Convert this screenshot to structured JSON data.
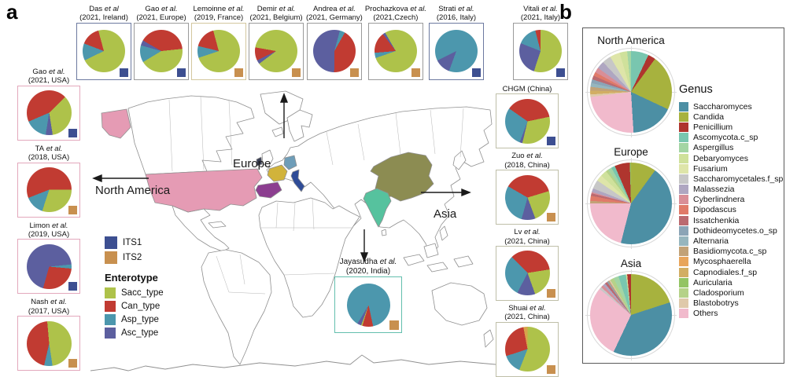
{
  "colors": {
    "enterotype": {
      "Sacc": "#AEC24A",
      "Can": "#C13B32",
      "Asp": "#4C97AD",
      "Asc": "#5C5F9F",
      "Oth": "#D9A24B"
    },
    "markers": {
      "ITS1": "#3D4F91",
      "ITS2": "#C8904F"
    },
    "map": {
      "usa": "#E59BB4",
      "france": "#D1B33B",
      "germany": "#6E9DB8",
      "spain": "#8C3E90",
      "italy": "#2F4C97",
      "ireland": "#3A3F55",
      "india": "#56C29E",
      "china": "#8C8C52"
    },
    "genus": {
      "Saccharomyces": "#4C8FA4",
      "Candida": "#A7B23E",
      "Penicillium": "#AF352E",
      "Ascomycota.c_sp": "#79C6AF",
      "Aspergillus": "#A3D5A4",
      "Debaryomyces": "#CFE19B",
      "Fusarium": "#DEE5A9",
      "Saccharomycetales.f_sp": "#C7C7C7",
      "Malassezia": "#AFA6C1",
      "Cyberlindnera": "#D98E97",
      "Dipodascus": "#E07A69",
      "Issatchenkia": "#BB6A70",
      "Dothideomycetes.o_sp": "#8BA4B6",
      "Alternaria": "#96B6BE",
      "Basidiomycota.c_sp": "#C2A277",
      "Mycosphaerella": "#E8A55B",
      "Capnodiales.f_sp": "#D2AE63",
      "Auricularia": "#93C463",
      "Cladosporium": "#B5D288",
      "Blastobotrys": "#DFC9AA",
      "Others": "#F1BACC"
    }
  },
  "panel_a": {
    "label": "a",
    "map_labels": {
      "europe": "Europe",
      "north_america": "North America",
      "asia": "Asia"
    },
    "its_legend": [
      {
        "label": "ITS1",
        "key": "ITS1"
      },
      {
        "label": "ITS2",
        "key": "ITS2"
      }
    ],
    "enterotype_legend": {
      "title": "Enterotype",
      "items": [
        {
          "label": "Sacc_type",
          "key": "Sacc"
        },
        {
          "label": "Can_type",
          "key": "Can"
        },
        {
          "label": "Asp_type",
          "key": "Asp"
        },
        {
          "label": "Asc_type",
          "key": "Asc"
        }
      ]
    }
  },
  "panel_b": {
    "label": "b",
    "genus_legend_title": "Genus"
  },
  "chart_data": {
    "type": "pie",
    "enterotype_pies": [
      {
        "col": "top",
        "study": "Das",
        "etal": "et al",
        "line2": "(2021, Ireland)",
        "marker": "ITS1",
        "border": "#6C79A0",
        "rot": -15,
        "slices": [
          [
            "Sacc",
            72
          ],
          [
            "Asp",
            13
          ],
          [
            "Can",
            15
          ]
        ]
      },
      {
        "col": "top",
        "study": "Gao",
        "etal": "et al.",
        "line2": "(2021, Europe)",
        "marker": "ITS1",
        "border": "#9A9A9A",
        "rot": -60,
        "slices": [
          [
            "Can",
            40
          ],
          [
            "Sacc",
            43
          ],
          [
            "Asp",
            13
          ],
          [
            "Asc",
            4
          ]
        ]
      },
      {
        "col": "top",
        "study": "Lemoinne",
        "etal": "et al.",
        "line2": "(2019, France)",
        "marker": "ITS2",
        "border": "#D3C79E",
        "rot": -15,
        "slices": [
          [
            "Sacc",
            74
          ],
          [
            "Asp",
            9
          ],
          [
            "Can",
            17
          ]
        ]
      },
      {
        "col": "top",
        "study": "Demir",
        "etal": "et al.",
        "line2": "(2021, Belgium)",
        "marker": "ITS2",
        "border": "#9A9A9A",
        "rot": -80,
        "slices": [
          [
            "Sacc",
            87
          ],
          [
            "Asc",
            3
          ],
          [
            "Can",
            10
          ]
        ]
      },
      {
        "col": "top",
        "study": "Andrea",
        "etal": "et al.",
        "line2": "(2021, Germany)",
        "marker": "ITS2",
        "border": "#9A9A9A",
        "rot": 15,
        "slices": [
          [
            "Asp",
            4
          ],
          [
            "Can",
            42
          ],
          [
            "Asc",
            54
          ]
        ]
      },
      {
        "col": "top",
        "study": "Prochazkova",
        "etal": "et al.",
        "line2": "(2021,Czech)",
        "marker": "ITS2",
        "border": "#9A9A9A",
        "rot": -30,
        "slices": [
          [
            "Sacc",
            78
          ],
          [
            "Asp",
            4
          ],
          [
            "Can",
            16
          ],
          [
            "Asc",
            2
          ]
        ]
      },
      {
        "col": "top",
        "study": "Strati",
        "etal": "et al.",
        "line2": "(2016, Italy)",
        "marker": "ITS1",
        "border": "#6C79A0",
        "rot": 200,
        "slices": [
          [
            "Asc",
            12
          ],
          [
            "Asp",
            88
          ]
        ]
      },
      {
        "col": "top",
        "study": "Vitali",
        "etal": "et al.",
        "line2": "(2021, Italy)",
        "marker": "ITS1",
        "border": "#9A9A9A",
        "rot": 0,
        "gap_before": true,
        "slices": [
          [
            "Sacc",
            55
          ],
          [
            "Asc",
            26
          ],
          [
            "Asp",
            15
          ],
          [
            "Can",
            4
          ]
        ]
      },
      {
        "col": "left",
        "study": "Gao",
        "etal": "et al.",
        "line2": "(2021, USA)",
        "marker": "ITS1",
        "border": "#E3A8BC",
        "rot": 45,
        "slices": [
          [
            "Sacc",
            35
          ],
          [
            "Asc",
            5
          ],
          [
            "Asp",
            16
          ],
          [
            "Can",
            44
          ]
        ]
      },
      {
        "col": "left",
        "study": "TA",
        "etal": "et al.",
        "line2": "(2018, USA)",
        "marker": "ITS2",
        "border": "#E3A8BC",
        "rot": 90,
        "slices": [
          [
            "Sacc",
            30
          ],
          [
            "Asp",
            14
          ],
          [
            "Can",
            56
          ]
        ]
      },
      {
        "col": "left",
        "study": "Limon",
        "etal": "et al.",
        "line2": "(2019, USA)",
        "marker": "ITS1",
        "border": "#E3A8BC",
        "rot": 95,
        "slices": [
          [
            "Can",
            28
          ],
          [
            "Asc",
            69
          ],
          [
            "Asp",
            3
          ]
        ]
      },
      {
        "col": "left",
        "study": "Nash",
        "etal": "et al.",
        "line2": "(2017, USA)",
        "marker": "ITS2",
        "border": "#E3A8BC",
        "rot": -5,
        "slices": [
          [
            "Sacc",
            49
          ],
          [
            "Asp",
            6
          ],
          [
            "Can",
            45
          ]
        ]
      },
      {
        "col": "right",
        "study": "CHGM (China)",
        "etal": "",
        "line2": "",
        "marker": "ITS1",
        "border": "#BFBFA8",
        "rot": -55,
        "slices": [
          [
            "Can",
            37
          ],
          [
            "Sacc",
            32
          ],
          [
            "Asc",
            2
          ],
          [
            "Asp",
            29
          ]
        ]
      },
      {
        "col": "right",
        "study": "Zuo",
        "etal": "et al.",
        "line2": "(2018, China)",
        "marker": "ITS2",
        "border": "#BFBFA8",
        "rot": -60,
        "slices": [
          [
            "Can",
            37
          ],
          [
            "Sacc",
            24
          ],
          [
            "Asc",
            10
          ],
          [
            "Asp",
            29
          ]
        ]
      },
      {
        "col": "right",
        "study": "Lv",
        "etal": "et al.",
        "line2": "(2021, China)",
        "marker": "ITS2",
        "border": "#BFBFA8",
        "rot": -45,
        "slices": [
          [
            "Can",
            35
          ],
          [
            "Sacc",
            22
          ],
          [
            "Asc",
            13
          ],
          [
            "Asp",
            30
          ]
        ]
      },
      {
        "col": "right",
        "study": "Shuai",
        "etal": "et al.",
        "line2": "(2021, China)",
        "marker": "ITS2",
        "border": "#BFBFA8",
        "rot": 0,
        "slices": [
          [
            "Sacc",
            56
          ],
          [
            "Asp",
            14
          ],
          [
            "Can",
            27
          ],
          [
            "Oth",
            3
          ]
        ]
      },
      {
        "col": "india",
        "study": "Jayasudha",
        "etal": "et al.",
        "line2": "(2020, India)",
        "marker": "ITS2",
        "border": "#63BFAE",
        "rot": 168,
        "slices": [
          [
            "Can",
            8
          ],
          [
            "Sacc",
            1
          ],
          [
            "Asc",
            3
          ],
          [
            "Asp",
            88
          ]
        ]
      }
    ],
    "genus_pies": [
      {
        "region": "North America",
        "slices": [
          [
            "Ascomycota.c_sp",
            7
          ],
          [
            "Penicillium",
            3
          ],
          [
            "Candida",
            22
          ],
          [
            "Saccharomyces",
            17
          ],
          [
            "Others",
            24
          ],
          [
            "Blastobotrys",
            1
          ],
          [
            "Capnodiales.f_sp",
            1.5
          ],
          [
            "Basidiomycota.c_sp",
            1.5
          ],
          [
            "Alternaria",
            1.5
          ],
          [
            "Dothideomycetes.o_sp",
            1.5
          ],
          [
            "Issatchenkia",
            1.5
          ],
          [
            "Dipodascus",
            1.5
          ],
          [
            "Cyberlindnera",
            2
          ],
          [
            "Malassezia",
            3
          ],
          [
            "Saccharomycetales.f_sp",
            3.5
          ],
          [
            "Fusarium",
            4
          ],
          [
            "Debaryomyces",
            3
          ],
          [
            "Aspergillus",
            1.5
          ]
        ]
      },
      {
        "region": "Europe",
        "slices": [
          [
            "Candida",
            10
          ],
          [
            "Saccharomyces",
            44
          ],
          [
            "Others",
            21
          ],
          [
            "Basidiomycota.c_sp",
            1
          ],
          [
            "Dipodascus",
            2
          ],
          [
            "Issatchenkia",
            1
          ],
          [
            "Cyberlindnera",
            0.5
          ],
          [
            "Malassezia",
            1.5
          ],
          [
            "Saccharomycetales.f_sp",
            3.5
          ],
          [
            "Fusarium",
            2.5
          ],
          [
            "Debaryomyces",
            2.5
          ],
          [
            "Cladosporium",
            1
          ],
          [
            "Aspergillus",
            1.5
          ],
          [
            "Ascomycota.c_sp",
            1.5
          ],
          [
            "Penicillium",
            6
          ],
          [
            "Auricularia",
            0.5
          ]
        ]
      },
      {
        "region": "Asia",
        "slices": [
          [
            "Candida",
            20
          ],
          [
            "Saccharomyces",
            37
          ],
          [
            "Others",
            29
          ],
          [
            "Saccharomycetales.f_sp",
            1
          ],
          [
            "Cyberlindnera",
            1
          ],
          [
            "Malassezia",
            1
          ],
          [
            "Issatchenkia",
            1
          ],
          [
            "Dothideomycetes.o_sp",
            0.5
          ],
          [
            "Basidiomycota.c_sp",
            0.5
          ],
          [
            "Blastobotrys",
            0.5
          ],
          [
            "Cladosporium",
            1.5
          ],
          [
            "Aspergillus",
            2
          ],
          [
            "Ascomycota.c_sp",
            3
          ],
          [
            "Debaryomyces",
            0.5
          ],
          [
            "Penicillium",
            1.5
          ]
        ]
      }
    ],
    "genus_legend_items": [
      "Saccharomyces",
      "Candida",
      "Penicillium",
      "Ascomycota.c_sp",
      "Aspergillus",
      "Debaryomyces",
      "Fusarium",
      "Saccharomycetales.f_sp",
      "Malassezia",
      "Cyberlindnera",
      "Dipodascus",
      "Issatchenkia",
      "Dothideomycetes.o_sp",
      "Alternaria",
      "Basidiomycota.c_sp",
      "Mycosphaerella",
      "Capnodiales.f_sp",
      "Auricularia",
      "Cladosporium",
      "Blastobotrys",
      "Others"
    ]
  }
}
